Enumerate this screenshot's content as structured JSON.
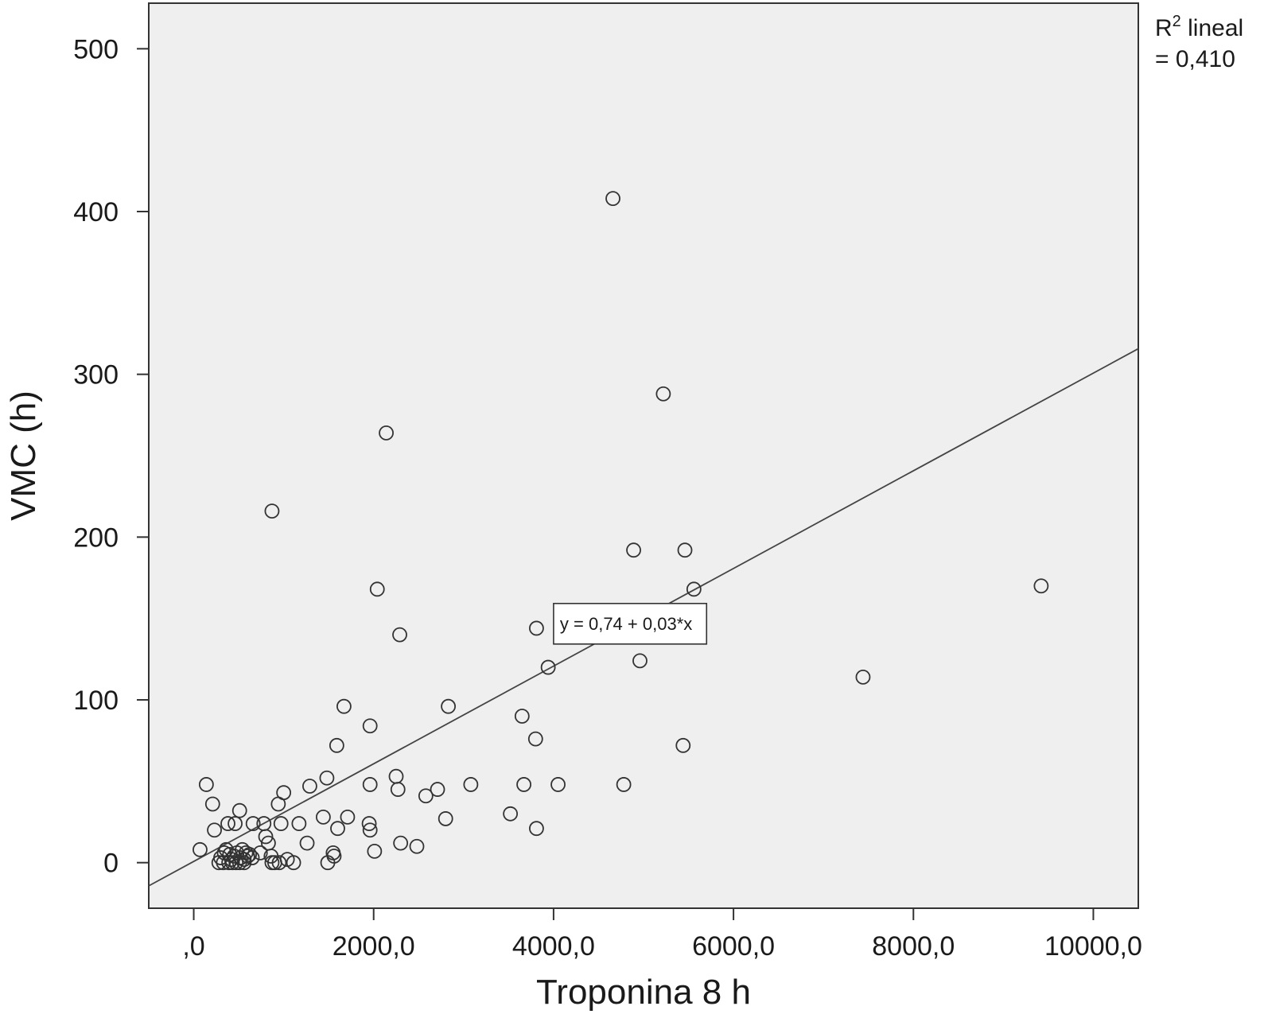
{
  "chart_data": {
    "type": "scatter",
    "xlabel": "Troponina 8 h",
    "ylabel": "VMC (h)",
    "xlim": [
      -500,
      10500
    ],
    "ylim": [
      -28,
      528
    ],
    "x_ticks": [
      0,
      2000,
      4000,
      6000,
      8000,
      10000
    ],
    "x_tick_labels": [
      ",0",
      "2000,0",
      "4000,0",
      "6000,0",
      "8000,0",
      "10000,0"
    ],
    "y_ticks": [
      0,
      100,
      200,
      300,
      400,
      500
    ],
    "y_tick_labels": [
      "0",
      "100",
      "200",
      "300",
      "400",
      "500"
    ],
    "grid": false,
    "plot_background": "#efefef",
    "marker_color": "#333333",
    "fit_line": {
      "intercept": 0.74,
      "slope": 0.03,
      "color": "#444444",
      "equation_label": "y = 0,74 + 0,03*x",
      "equation_anchor": [
        4000,
        147
      ]
    },
    "r2": {
      "prefix": "R",
      "superscript": "2",
      "suffix": " lineal",
      "value_line": "= 0,410"
    },
    "points": [
      [
        4660,
        408
      ],
      [
        5220,
        288
      ],
      [
        2140,
        264
      ],
      [
        870,
        216
      ],
      [
        4890,
        192
      ],
      [
        5460,
        192
      ],
      [
        5560,
        168
      ],
      [
        2040,
        168
      ],
      [
        9420,
        170
      ],
      [
        3810,
        144
      ],
      [
        2290,
        140
      ],
      [
        3940,
        120
      ],
      [
        4960,
        124
      ],
      [
        7440,
        114
      ],
      [
        1670,
        96
      ],
      [
        2830,
        96
      ],
      [
        1960,
        84
      ],
      [
        3650,
        90
      ],
      [
        3800,
        76
      ],
      [
        5440,
        72
      ],
      [
        1590,
        72
      ],
      [
        140,
        48
      ],
      [
        1480,
        52
      ],
      [
        1290,
        47
      ],
      [
        1000,
        43
      ],
      [
        1960,
        48
      ],
      [
        2250,
        53
      ],
      [
        2270,
        45
      ],
      [
        2580,
        41
      ],
      [
        2710,
        45
      ],
      [
        3080,
        48
      ],
      [
        3670,
        48
      ],
      [
        4050,
        48
      ],
      [
        4780,
        48
      ],
      [
        210,
        36
      ],
      [
        510,
        32
      ],
      [
        940,
        36
      ],
      [
        1440,
        28
      ],
      [
        1710,
        28
      ],
      [
        2800,
        27
      ],
      [
        3520,
        30
      ],
      [
        380,
        24
      ],
      [
        460,
        24
      ],
      [
        660,
        24
      ],
      [
        780,
        24
      ],
      [
        970,
        24
      ],
      [
        1170,
        24
      ],
      [
        1950,
        24
      ],
      [
        230,
        20
      ],
      [
        1600,
        21
      ],
      [
        1960,
        20
      ],
      [
        3810,
        21
      ],
      [
        800,
        16
      ],
      [
        830,
        12
      ],
      [
        1260,
        12
      ],
      [
        2300,
        12
      ],
      [
        2480,
        10
      ],
      [
        70,
        8
      ],
      [
        540,
        8
      ],
      [
        580,
        6
      ],
      [
        740,
        6
      ],
      [
        860,
        4
      ],
      [
        1040,
        2
      ],
      [
        1550,
        6
      ],
      [
        1560,
        4
      ],
      [
        2010,
        7
      ],
      [
        300,
        3
      ],
      [
        340,
        6
      ],
      [
        360,
        8
      ],
      [
        400,
        5
      ],
      [
        420,
        2
      ],
      [
        450,
        4
      ],
      [
        480,
        6
      ],
      [
        520,
        3
      ],
      [
        560,
        2
      ],
      [
        600,
        4
      ],
      [
        620,
        5
      ],
      [
        650,
        3
      ],
      [
        280,
        0
      ],
      [
        330,
        0
      ],
      [
        390,
        0
      ],
      [
        430,
        0
      ],
      [
        470,
        0
      ],
      [
        510,
        0
      ],
      [
        560,
        0
      ],
      [
        870,
        0
      ],
      [
        900,
        0
      ],
      [
        950,
        0
      ],
      [
        1110,
        0
      ],
      [
        1490,
        0
      ]
    ]
  }
}
